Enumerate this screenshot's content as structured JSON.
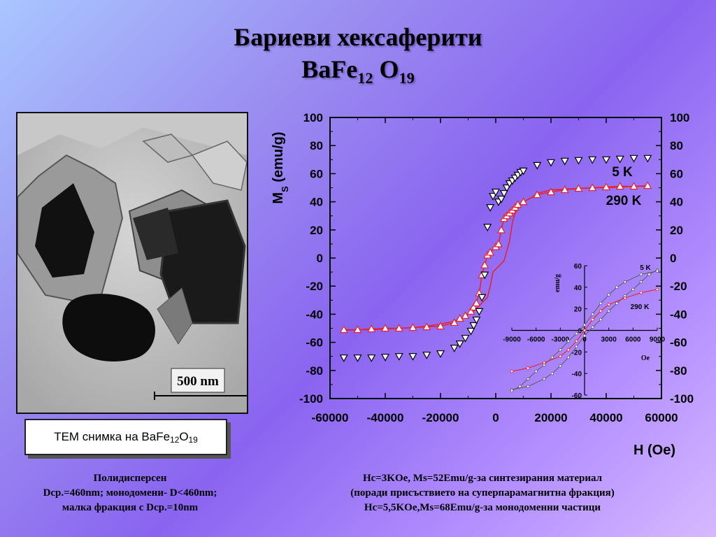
{
  "slide": {
    "title_line1": "Бариеви хексаферити",
    "title_line2": {
      "base": "BaFe",
      "sub1": "12",
      "mid": " O",
      "sub2": "19"
    },
    "tem_scale_label": "500 nm",
    "tem_caption": {
      "text": "ТЕМ снимка на BaFe",
      "sub1": "12",
      "mid": "O",
      "sub2": "19"
    },
    "note_left": [
      "Полидисперсен",
      "Dср.=460nm; монодомени- D<460nm;",
      "малка фракция с Dср.=10nm"
    ],
    "note_right": [
      "Hc=3KOe, Ms=52Emu/g-за синтезирания материал",
      "(поради присъствието на суперпарамагнитна фракция)",
      "Hc=5,5KOe,Ms=68Emu/g-за монодоменни частици"
    ]
  },
  "colors": {
    "curve_290K": "#e8202a",
    "marker_5K": "#000000",
    "frame": "#000000"
  },
  "chart_data": [
    {
      "type": "scatter",
      "xlabel": "H (Oe)",
      "ylabel": "Ms (emu/g)",
      "ylabel_base": "M",
      "ylabel_sub": "S",
      "ylabel_rest": " (emu/g)",
      "xlim": [
        -60000,
        60000
      ],
      "ylim": [
        -100,
        100
      ],
      "xticks": [
        "-60000",
        "-40000",
        "-20000",
        "0",
        "20000",
        "40000",
        "60000"
      ],
      "yticks": [
        "100",
        "80",
        "60",
        "40",
        "20",
        "0",
        "-20",
        "-40",
        "-60",
        "-80",
        "-100"
      ],
      "yticks_right": [
        "100",
        "80",
        "60",
        "40",
        "20",
        "0",
        "-20",
        "-40",
        "-60",
        "-80",
        "-100"
      ],
      "series": [
        {
          "name": "5 K",
          "marker": "triangle-down",
          "x": [
            -55000,
            -50000,
            -45000,
            -40000,
            -35000,
            -30000,
            -25000,
            -20000,
            -15000,
            -13000,
            -11000,
            -9000,
            -8000,
            -7000,
            -6000,
            -5000,
            -4000,
            -3000,
            -2000,
            -1000,
            0,
            1000,
            2000,
            3000,
            4000,
            5000,
            6000,
            7000,
            8000,
            9000,
            10000,
            15000,
            20000,
            25000,
            30000,
            35000,
            40000,
            45000,
            50000,
            55000
          ],
          "y": [
            -71,
            -71,
            -71,
            -70.5,
            -70,
            -70,
            -69,
            -68,
            -64,
            -61,
            -57,
            -52,
            -48,
            -44,
            -38,
            -28,
            -12,
            22,
            36,
            44,
            47,
            40,
            42,
            46,
            50,
            53,
            55,
            57,
            59,
            61,
            62,
            66,
            68,
            69,
            69.5,
            70,
            70,
            70.5,
            71,
            71
          ]
        },
        {
          "name": "290 K",
          "marker": "triangle-up",
          "x": [
            -55000,
            -50000,
            -45000,
            -40000,
            -35000,
            -30000,
            -25000,
            -20000,
            -15000,
            -13000,
            -11000,
            -9000,
            -8000,
            -7000,
            -6000,
            -5000,
            -4000,
            -3000,
            -2000,
            0,
            1000,
            2000,
            3000,
            4000,
            5000,
            6000,
            7000,
            8000,
            10000,
            15000,
            20000,
            25000,
            30000,
            35000,
            40000,
            45000,
            50000,
            55000
          ],
          "y": [
            -51,
            -51,
            -50.5,
            -50,
            -50,
            -49.5,
            -49,
            -48.5,
            -46,
            -43,
            -41,
            -38,
            -35,
            -32,
            -25,
            -12,
            -5,
            2,
            4,
            8,
            10,
            20,
            28,
            30,
            32,
            34,
            36,
            38,
            40,
            45,
            47,
            48.5,
            49.5,
            50,
            50.5,
            51,
            51,
            51.5
          ]
        }
      ],
      "annotations": [
        "5 K",
        "290 K"
      ]
    },
    {
      "type": "line",
      "title": "inset",
      "xlabel": "Oe",
      "ylabel": "emu/g",
      "xlim": [
        -9000,
        9000
      ],
      "ylim": [
        -60,
        60
      ],
      "xticks": [
        "-9000",
        "-6000",
        "-3000",
        "0",
        "3000",
        "6000",
        "9000"
      ],
      "yticks": [
        "60",
        "40",
        "20",
        "0",
        "-20",
        "-40",
        "-60"
      ],
      "series": [
        {
          "name": "5 K",
          "x": [
            -9000,
            -7000,
            -5000,
            -4000,
            -3000,
            -2000,
            -1000,
            0,
            1000,
            2000,
            3000,
            4000,
            5000,
            6000,
            7000,
            8000,
            9000
          ],
          "y": [
            -55,
            -52,
            -45,
            -40,
            -33,
            -25,
            -15,
            -5,
            3,
            10,
            18,
            25,
            32,
            38,
            45,
            52,
            56
          ]
        },
        {
          "name": "290 K",
          "x": [
            -9000,
            -7000,
            -5000,
            -3000,
            -2000,
            -1000,
            0,
            1000,
            2000,
            3000,
            5000,
            7000,
            9000
          ],
          "y": [
            -38,
            -35,
            -30,
            -24,
            -18,
            -10,
            0,
            10,
            18,
            24,
            30,
            35,
            38
          ]
        }
      ],
      "annotations": [
        "5 K",
        "290 K"
      ]
    }
  ]
}
